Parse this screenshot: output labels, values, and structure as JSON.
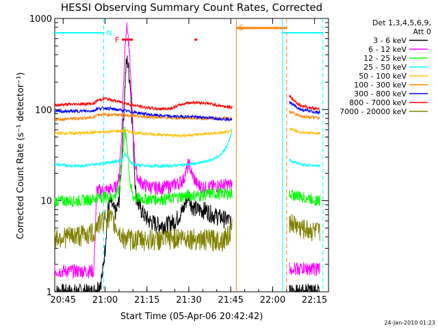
{
  "chart_data": {
    "type": "line",
    "title": "HESSI Observing Summary Count Rates, Corrected",
    "xlabel": "Start Time (05-Apr-06 20:42:42)",
    "ylabel": "Corrected Count Rate (s⁻¹ detector⁻¹)",
    "y_scale": "log",
    "ylim": [
      1,
      1000
    ],
    "xlim": [
      "20:42",
      "22:20"
    ],
    "x_ticks": [
      {
        "label": "20:45",
        "min": 1245
      },
      {
        "label": "21:00",
        "min": 1260
      },
      {
        "label": "21:15",
        "min": 1275
      },
      {
        "label": "21:30",
        "min": 1290
      },
      {
        "label": "21:45",
        "min": 1305
      },
      {
        "label": "22:00",
        "min": 1320
      },
      {
        "label": "22:15",
        "min": 1335
      }
    ],
    "y_ticks": [
      {
        "label": "1",
        "value": 1
      },
      {
        "label": "10",
        "value": 10
      },
      {
        "label": "100",
        "value": 100
      },
      {
        "label": "1000",
        "value": 1000
      }
    ],
    "legend_header": [
      "Det 1,3,4,5,6,9,",
      "Att 0"
    ],
    "series": [
      {
        "name": "3 - 6 keV",
        "color": "#000000",
        "points": [
          [
            1242,
            1.0
          ],
          [
            1253,
            1.0
          ],
          [
            1256,
            1.0
          ],
          [
            1258,
            1.2
          ],
          [
            1259,
            1.5
          ],
          [
            1260,
            3.0
          ],
          [
            1261,
            8.0
          ],
          [
            1262,
            10.0
          ],
          [
            1263,
            8.0
          ],
          [
            1264,
            7.5
          ],
          [
            1265,
            10.0
          ],
          [
            1266,
            30.0
          ],
          [
            1267,
            150.0
          ],
          [
            1267.5,
            300.0
          ],
          [
            1268,
            350.0
          ],
          [
            1269,
            200.0
          ],
          [
            1270,
            50.0
          ],
          [
            1271,
            12.0
          ],
          [
            1272,
            9.0
          ],
          [
            1274,
            7.0
          ],
          [
            1276,
            6.0
          ],
          [
            1279,
            5.5
          ],
          [
            1282,
            5.5
          ],
          [
            1285,
            6.0
          ],
          [
            1288,
            8.0
          ],
          [
            1289,
            10.0
          ],
          [
            1290,
            12.0
          ],
          [
            1291,
            9.0
          ],
          [
            1293,
            8.0
          ],
          [
            1296,
            8.0
          ],
          [
            1299,
            7.0
          ],
          [
            1302,
            6.5
          ],
          [
            1305,
            6.0
          ]
        ]
      },
      {
        "name": "6 - 12 keV",
        "color": "#ff00ff",
        "points": [
          [
            1242,
            1.7
          ],
          [
            1253,
            1.7
          ],
          [
            1256,
            1.7
          ],
          [
            1257,
            13.0
          ],
          [
            1260,
            13.0
          ],
          [
            1262,
            13.5
          ],
          [
            1264,
            14.0
          ],
          [
            1265,
            18.0
          ],
          [
            1266,
            60.0
          ],
          [
            1267,
            400.0
          ],
          [
            1267.5,
            750.0
          ],
          [
            1268,
            800.0
          ],
          [
            1269,
            300.0
          ],
          [
            1270,
            60.0
          ],
          [
            1271,
            22.0
          ],
          [
            1272,
            17.0
          ],
          [
            1274,
            15.0
          ],
          [
            1277,
            14.0
          ],
          [
            1280,
            14.0
          ],
          [
            1283,
            14.5
          ],
          [
            1286,
            15.5
          ],
          [
            1288,
            17.0
          ],
          [
            1289,
            21.0
          ],
          [
            1290,
            26.0
          ],
          [
            1291,
            20.0
          ],
          [
            1293,
            15.0
          ],
          [
            1296,
            14.0
          ],
          [
            1299,
            14.5
          ],
          [
            1302,
            15.0
          ],
          [
            1305,
            15.0
          ],
          [
            1305.5,
            15.0
          ]
        ]
      },
      {
        "name": "12 - 25 keV",
        "color": "#00ff00",
        "points": [
          [
            1242,
            10.0
          ],
          [
            1250,
            10.0
          ],
          [
            1256,
            10.5
          ],
          [
            1257,
            11.0
          ],
          [
            1260,
            11.0
          ],
          [
            1263,
            11.0
          ],
          [
            1265,
            13.0
          ],
          [
            1266,
            25.0
          ],
          [
            1267,
            60.0
          ],
          [
            1268,
            40.0
          ],
          [
            1269,
            15.0
          ],
          [
            1270,
            11.0
          ],
          [
            1274,
            10.5
          ],
          [
            1278,
            10.5
          ],
          [
            1282,
            10.5
          ],
          [
            1286,
            11.0
          ],
          [
            1290,
            11.5
          ],
          [
            1294,
            11.5
          ],
          [
            1298,
            12.0
          ],
          [
            1302,
            12.0
          ],
          [
            1305,
            12.0
          ],
          [
            1305.5,
            12.0
          ]
        ]
      },
      {
        "name": "25 - 50 keV",
        "color": "#00ffff",
        "points": [
          [
            1242,
            25.0
          ],
          [
            1250,
            24.0
          ],
          [
            1256,
            25.0
          ],
          [
            1260,
            26.0
          ],
          [
            1264,
            27.0
          ],
          [
            1266,
            28.0
          ],
          [
            1267,
            33.0
          ],
          [
            1268,
            30.0
          ],
          [
            1270,
            25.0
          ],
          [
            1274,
            24.0
          ],
          [
            1278,
            24.0
          ],
          [
            1282,
            24.0
          ],
          [
            1286,
            24.5
          ],
          [
            1290,
            25.0
          ],
          [
            1294,
            26.0
          ],
          [
            1298,
            28.0
          ],
          [
            1301,
            31.0
          ],
          [
            1303,
            37.0
          ],
          [
            1304,
            42.0
          ],
          [
            1305,
            52.0
          ],
          [
            1305.5,
            60.0
          ]
        ]
      },
      {
        "name": "50 - 100 keV",
        "color": "#ffc000",
        "points": [
          [
            1242,
            55.0
          ],
          [
            1250,
            55.0
          ],
          [
            1256,
            56.0
          ],
          [
            1260,
            57.0
          ],
          [
            1264,
            58.0
          ],
          [
            1268,
            58.0
          ],
          [
            1272,
            55.0
          ],
          [
            1276,
            54.0
          ],
          [
            1280,
            53.0
          ],
          [
            1284,
            52.0
          ],
          [
            1288,
            52.0
          ],
          [
            1292,
            53.0
          ],
          [
            1296,
            54.0
          ],
          [
            1300,
            55.0
          ],
          [
            1303,
            56.0
          ],
          [
            1305,
            57.0
          ],
          [
            1305.5,
            58.0
          ]
        ]
      },
      {
        "name": "100 - 300 keV",
        "color": "#ff8000",
        "points": [
          [
            1242,
            78.0
          ],
          [
            1250,
            80.0
          ],
          [
            1256,
            82.0
          ],
          [
            1257,
            88.0
          ],
          [
            1260,
            88.0
          ],
          [
            1264,
            88.0
          ],
          [
            1268,
            87.0
          ],
          [
            1272,
            84.0
          ],
          [
            1276,
            83.0
          ],
          [
            1280,
            82.0
          ],
          [
            1284,
            81.0
          ],
          [
            1288,
            81.0
          ],
          [
            1292,
            81.0
          ],
          [
            1296,
            80.0
          ],
          [
            1300,
            80.0
          ],
          [
            1305,
            80.0
          ],
          [
            1305.5,
            80.0
          ]
        ]
      },
      {
        "name": "300 - 800 keV",
        "color": "#0000ff",
        "points": [
          [
            1242,
            95.0
          ],
          [
            1250,
            96.0
          ],
          [
            1256,
            97.0
          ],
          [
            1257,
            102.0
          ],
          [
            1260,
            104.0
          ],
          [
            1264,
            100.0
          ],
          [
            1268,
            96.0
          ],
          [
            1272,
            92.0
          ],
          [
            1276,
            88.0
          ],
          [
            1280,
            86.0
          ],
          [
            1284,
            84.0
          ],
          [
            1288,
            84.0
          ],
          [
            1292,
            83.0
          ],
          [
            1296,
            82.0
          ],
          [
            1300,
            80.0
          ],
          [
            1305,
            78.0
          ],
          [
            1305.5,
            78.0
          ]
        ]
      },
      {
        "name": "800 - 7000 keV",
        "color": "#ff0000",
        "points": [
          [
            1242,
            112.0
          ],
          [
            1250,
            115.0
          ],
          [
            1256,
            116.0
          ],
          [
            1257,
            125.0
          ],
          [
            1260,
            132.0
          ],
          [
            1263,
            126.0
          ],
          [
            1266,
            120.0
          ],
          [
            1270,
            112.0
          ],
          [
            1274,
            106.0
          ],
          [
            1278,
            102.0
          ],
          [
            1282,
            102.0
          ],
          [
            1284,
            104.0
          ],
          [
            1286,
            110.0
          ],
          [
            1289,
            118.0
          ],
          [
            1292,
            120.0
          ],
          [
            1296,
            118.0
          ],
          [
            1300,
            112.0
          ],
          [
            1303,
            108.0
          ],
          [
            1305,
            106.0
          ],
          [
            1305.5,
            106.0
          ]
        ]
      },
      {
        "name": "7000 - 20000 keV",
        "color": "#808000",
        "points": [
          [
            1242,
            4.0
          ],
          [
            1250,
            4.2
          ],
          [
            1256,
            4.5
          ],
          [
            1257,
            5.5
          ],
          [
            1260,
            6.5
          ],
          [
            1262,
            6.5
          ],
          [
            1266,
            4.0
          ],
          [
            1270,
            3.8
          ],
          [
            1274,
            3.8
          ],
          [
            1278,
            3.8
          ],
          [
            1282,
            3.8
          ],
          [
            1286,
            4.0
          ],
          [
            1290,
            4.0
          ],
          [
            1294,
            3.8
          ],
          [
            1298,
            3.8
          ],
          [
            1302,
            3.8
          ],
          [
            1305,
            4.5
          ],
          [
            1305.5,
            5.0
          ]
        ]
      }
    ],
    "after_gap_series": [
      {
        "name": "3 - 6 keV",
        "color": "#000000",
        "points": [
          [
            1326,
            1.0
          ],
          [
            1337,
            1.0
          ]
        ]
      },
      {
        "name": "6 - 12 keV",
        "color": "#ff00ff",
        "points": [
          [
            1326,
            1.8
          ],
          [
            1337,
            1.8
          ]
        ]
      },
      {
        "name": "12 - 25 keV",
        "color": "#00ff00",
        "points": [
          [
            1326,
            12.0
          ],
          [
            1330,
            11.0
          ],
          [
            1337,
            10.0
          ]
        ]
      },
      {
        "name": "25 - 50 keV",
        "color": "#00ffff",
        "points": [
          [
            1326,
            28.0
          ],
          [
            1330,
            25.0
          ],
          [
            1337,
            24.0
          ]
        ]
      },
      {
        "name": "50 - 100 keV",
        "color": "#ffc000",
        "points": [
          [
            1326,
            62.0
          ],
          [
            1330,
            56.0
          ],
          [
            1337,
            55.0
          ]
        ]
      },
      {
        "name": "100 - 300 keV",
        "color": "#ff8000",
        "points": [
          [
            1326,
            95.0
          ],
          [
            1330,
            85.0
          ],
          [
            1337,
            80.0
          ]
        ]
      },
      {
        "name": "300 - 800 keV",
        "color": "#0000ff",
        "points": [
          [
            1326,
            120.0
          ],
          [
            1330,
            100.0
          ],
          [
            1337,
            92.0
          ]
        ]
      },
      {
        "name": "800 - 7000 keV",
        "color": "#ff0000",
        "points": [
          [
            1326,
            140.0
          ],
          [
            1330,
            110.0
          ],
          [
            1337,
            100.0
          ]
        ]
      },
      {
        "name": "7000 - 20000 keV",
        "color": "#808000",
        "points": [
          [
            1326,
            6.0
          ],
          [
            1330,
            5.0
          ],
          [
            1337,
            4.5
          ]
        ]
      }
    ],
    "annotations": [
      {
        "label": "N",
        "color": "#00ffff",
        "x_min": 1259.5
      },
      {
        "label": "F",
        "color": "#ff0000",
        "x_min": 1266
      },
      {
        "label": "S",
        "color": "#ff8000",
        "x_min": 1307
      }
    ],
    "intervals": {
      "night": [
        {
          "start": 1242,
          "end": 1259.5
        },
        {
          "start": 1323.5,
          "end": 1338
        }
      ],
      "flare": [
        {
          "start": 1266,
          "end": 1270
        },
        {
          "start": 1292,
          "end": 1293
        }
      ],
      "saa": [
        {
          "start": 1307,
          "end": 1325
        }
      ]
    },
    "footer_stamp": "24-Jan-2010 01:23"
  }
}
